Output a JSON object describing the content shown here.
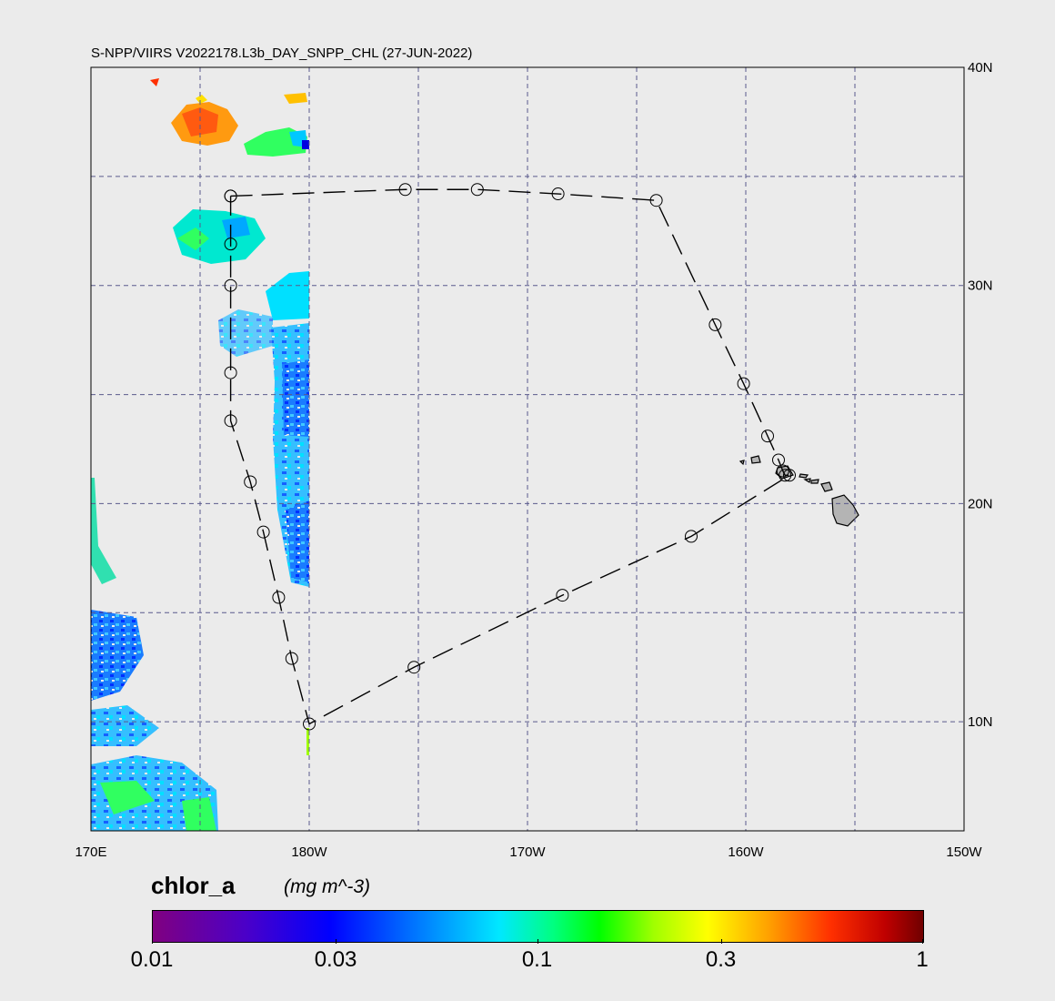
{
  "title": "S-NPP/VIIRS V2022178.L3b_DAY_SNPP_CHL (27-JUN-2022)",
  "map": {
    "lon_range": [
      170,
      210
    ],
    "lat_range": [
      5,
      40
    ],
    "lon_ticks": [
      {
        "lon": 170,
        "label": "170E"
      },
      {
        "lon": 180,
        "label": "180W"
      },
      {
        "lon": 190,
        "label": "170W"
      },
      {
        "lon": 200,
        "label": "160W"
      },
      {
        "lon": 210,
        "label": "150W"
      }
    ],
    "lat_ticks": [
      {
        "lat": 40,
        "label": "40N"
      },
      {
        "lat": 30,
        "label": "30N"
      },
      {
        "lat": 20,
        "label": "20N"
      },
      {
        "lat": 10,
        "label": "10N"
      }
    ],
    "grid_lons": [
      175,
      180,
      185,
      190,
      195,
      200,
      205
    ],
    "grid_lats": [
      10,
      15,
      20,
      25,
      30,
      35
    ],
    "grid_color": "#5a5a8c",
    "background_color": "#ebebeb",
    "track_stations": [
      {
        "lon": 176.4,
        "lat": 34.1
      },
      {
        "lon": 184.4,
        "lat": 34.4
      },
      {
        "lon": 187.7,
        "lat": 34.4
      },
      {
        "lon": 191.4,
        "lat": 34.2
      },
      {
        "lon": 195.9,
        "lat": 33.9
      },
      {
        "lon": 198.6,
        "lat": 28.2
      },
      {
        "lon": 199.9,
        "lat": 25.5
      },
      {
        "lon": 201.0,
        "lat": 23.1
      },
      {
        "lon": 201.5,
        "lat": 22.0
      },
      {
        "lon": 201.7,
        "lat": 21.5
      },
      {
        "lon": 201.8,
        "lat": 21.3
      },
      {
        "lon": 202.0,
        "lat": 21.3
      },
      {
        "lon": 197.5,
        "lat": 18.5
      },
      {
        "lon": 191.6,
        "lat": 15.8
      },
      {
        "lon": 184.8,
        "lat": 12.5
      },
      {
        "lon": 180.0,
        "lat": 9.9
      },
      {
        "lon": 179.2,
        "lat": 12.9
      },
      {
        "lon": 178.6,
        "lat": 15.7
      },
      {
        "lon": 177.9,
        "lat": 18.7
      },
      {
        "lon": 177.3,
        "lat": 21.0
      },
      {
        "lon": 176.4,
        "lat": 23.8
      },
      {
        "lon": 176.4,
        "lat": 26.0
      },
      {
        "lon": 176.4,
        "lat": 30.0
      },
      {
        "lon": 176.4,
        "lat": 31.9
      },
      {
        "lon": 176.4,
        "lat": 34.1
      }
    ]
  },
  "colorbar": {
    "variable": "chlor_a",
    "units": "(mg m^-3)",
    "scale": "log",
    "range": [
      0.01,
      1
    ],
    "ticks": [
      "0.01",
      "0.03",
      "0.1",
      "0.3",
      "1"
    ]
  }
}
